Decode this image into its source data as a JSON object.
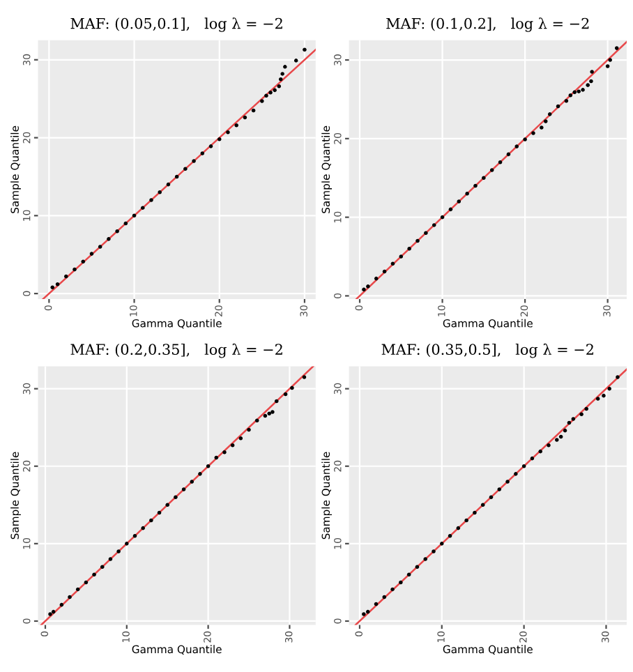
{
  "chart_data": [
    {
      "type": "scatter",
      "title": "MAF: (0.05,0.1],   log λ = −2",
      "xlabel": "Gamma Quantile",
      "ylabel": "Sample Quantile",
      "xlim": [
        -1.3,
        31.3
      ],
      "ylim": [
        -0.7,
        32.5
      ],
      "xticks": [
        0,
        10,
        20,
        30
      ],
      "yticks": [
        0,
        10,
        20,
        30
      ],
      "grid": true,
      "legend": false,
      "series": [
        {
          "color": "#000000",
          "marker": "circle",
          "x": [
            0.4,
            1,
            2,
            3,
            4,
            5,
            6,
            7,
            8,
            9,
            10,
            11,
            12,
            13,
            14,
            15,
            16,
            17,
            18,
            19,
            20,
            21,
            22,
            23,
            24,
            25,
            25.5,
            26,
            26.5,
            27,
            27.2,
            27.4,
            27.7,
            29.0,
            30.0
          ],
          "values": [
            0.8,
            1.2,
            2.2,
            3.1,
            4.1,
            5.1,
            6.0,
            7.0,
            8.0,
            9.0,
            10.0,
            11.0,
            12.0,
            13.0,
            14.0,
            15.0,
            16.0,
            17.0,
            18.0,
            18.9,
            19.8,
            20.7,
            21.6,
            22.6,
            23.5,
            24.7,
            25.4,
            25.8,
            26.1,
            26.6,
            27.5,
            28.2,
            29.1,
            29.9,
            31.3
          ]
        },
        {
          "type": "line",
          "color": "#e8484a",
          "x": [
            -0.7,
            31.3
          ],
          "values": [
            -0.7,
            31.3
          ]
        }
      ]
    },
    {
      "type": "scatter",
      "title": "MAF: (0.1,0.2],   log λ = −2",
      "xlabel": "Gamma Quantile",
      "ylabel": "Sample Quantile",
      "xlim": [
        -1.3,
        32.3
      ],
      "ylim": [
        -0.4,
        32.5
      ],
      "xticks": [
        0,
        10,
        20,
        30
      ],
      "yticks": [
        0,
        10,
        20,
        30
      ],
      "grid": true,
      "legend": false,
      "series": [
        {
          "color": "#000000",
          "marker": "circle",
          "x": [
            0.5,
            1,
            2,
            3,
            4,
            5,
            6,
            7,
            8,
            9,
            10,
            11,
            12,
            13,
            14,
            15,
            16,
            17,
            18,
            19,
            20,
            21,
            22,
            22.5,
            23,
            24,
            25,
            25.5,
            26,
            26.5,
            27,
            27.6,
            28.0,
            28.1,
            30.0,
            30.3,
            31.1
          ],
          "values": [
            0.8,
            1.2,
            2.2,
            3.1,
            4.1,
            5.0,
            6.0,
            7.0,
            8.0,
            9.0,
            10.0,
            11.0,
            12.0,
            13.0,
            14.0,
            15.0,
            16.0,
            17.0,
            18.0,
            19.0,
            19.9,
            20.7,
            21.4,
            22.2,
            23.1,
            24.1,
            24.8,
            25.5,
            25.9,
            26.0,
            26.2,
            26.8,
            27.3,
            28.5,
            29.2,
            30.0,
            31.5
          ]
        },
        {
          "type": "line",
          "color": "#e8484a",
          "x": [
            -0.4,
            32.3
          ],
          "values": [
            -0.4,
            32.3
          ]
        }
      ]
    },
    {
      "type": "scatter",
      "title": "MAF: (0.2,0.35],   log λ = −2",
      "xlabel": "Gamma Quantile",
      "ylabel": "Sample Quantile",
      "xlim": [
        -0.9,
        33.2
      ],
      "ylim": [
        -0.5,
        32.9
      ],
      "xticks": [
        0,
        10,
        20,
        30
      ],
      "yticks": [
        0,
        10,
        20,
        30
      ],
      "grid": true,
      "legend": false,
      "series": [
        {
          "color": "#000000",
          "marker": "circle",
          "x": [
            0.6,
            1,
            2,
            3,
            4,
            5,
            6,
            7,
            8,
            9,
            10,
            11,
            12,
            13,
            14,
            15,
            16,
            17,
            18,
            19,
            20,
            21,
            22,
            23,
            24,
            25,
            26,
            27,
            27.5,
            27.9,
            28.4,
            29.5,
            30.3,
            31.8
          ],
          "values": [
            0.9,
            1.2,
            2.1,
            3.1,
            4.1,
            5.0,
            6.0,
            7.0,
            8.0,
            9.0,
            10.0,
            11.0,
            12.0,
            13.0,
            14.0,
            15.0,
            16.0,
            17.0,
            18.0,
            19.0,
            20.0,
            21.1,
            21.8,
            22.7,
            23.6,
            24.7,
            25.9,
            26.5,
            26.8,
            27.0,
            28.4,
            29.3,
            30.1,
            31.5
          ]
        },
        {
          "type": "line",
          "color": "#e8484a",
          "x": [
            -0.5,
            32.9
          ],
          "values": [
            -0.5,
            32.9
          ]
        }
      ]
    },
    {
      "type": "scatter",
      "title": "MAF: (0.35,0.5],   log λ = −2",
      "xlabel": "Gamma Quantile",
      "ylabel": "Sample Quantile",
      "xlim": [
        -1.3,
        32.5
      ],
      "ylim": [
        -0.5,
        32.9
      ],
      "xticks": [
        0,
        10,
        20,
        30
      ],
      "yticks": [
        0,
        10,
        20,
        30
      ],
      "grid": true,
      "legend": false,
      "series": [
        {
          "color": "#000000",
          "marker": "circle",
          "x": [
            0.5,
            1,
            2,
            3,
            4,
            5,
            6,
            7,
            8,
            9,
            10,
            11,
            12,
            13,
            14,
            15,
            16,
            17,
            18,
            19,
            20,
            21,
            22,
            23,
            24,
            24.5,
            25,
            25.5,
            26,
            27,
            27.6,
            29.0,
            29.7,
            30.4,
            31.4
          ],
          "values": [
            0.9,
            1.2,
            2.2,
            3.1,
            4.1,
            5.0,
            6.0,
            7.0,
            8.0,
            9.0,
            10.0,
            11.0,
            12.0,
            13.0,
            14.0,
            15.0,
            16.0,
            17.0,
            18.0,
            19.0,
            20.0,
            21.0,
            21.9,
            22.7,
            23.4,
            23.8,
            24.6,
            25.6,
            26.1,
            26.7,
            27.4,
            28.7,
            29.1,
            30.0,
            31.5
          ]
        },
        {
          "type": "line",
          "color": "#e8484a",
          "x": [
            -0.5,
            32.5
          ],
          "values": [
            -0.5,
            32.5
          ]
        }
      ]
    }
  ]
}
